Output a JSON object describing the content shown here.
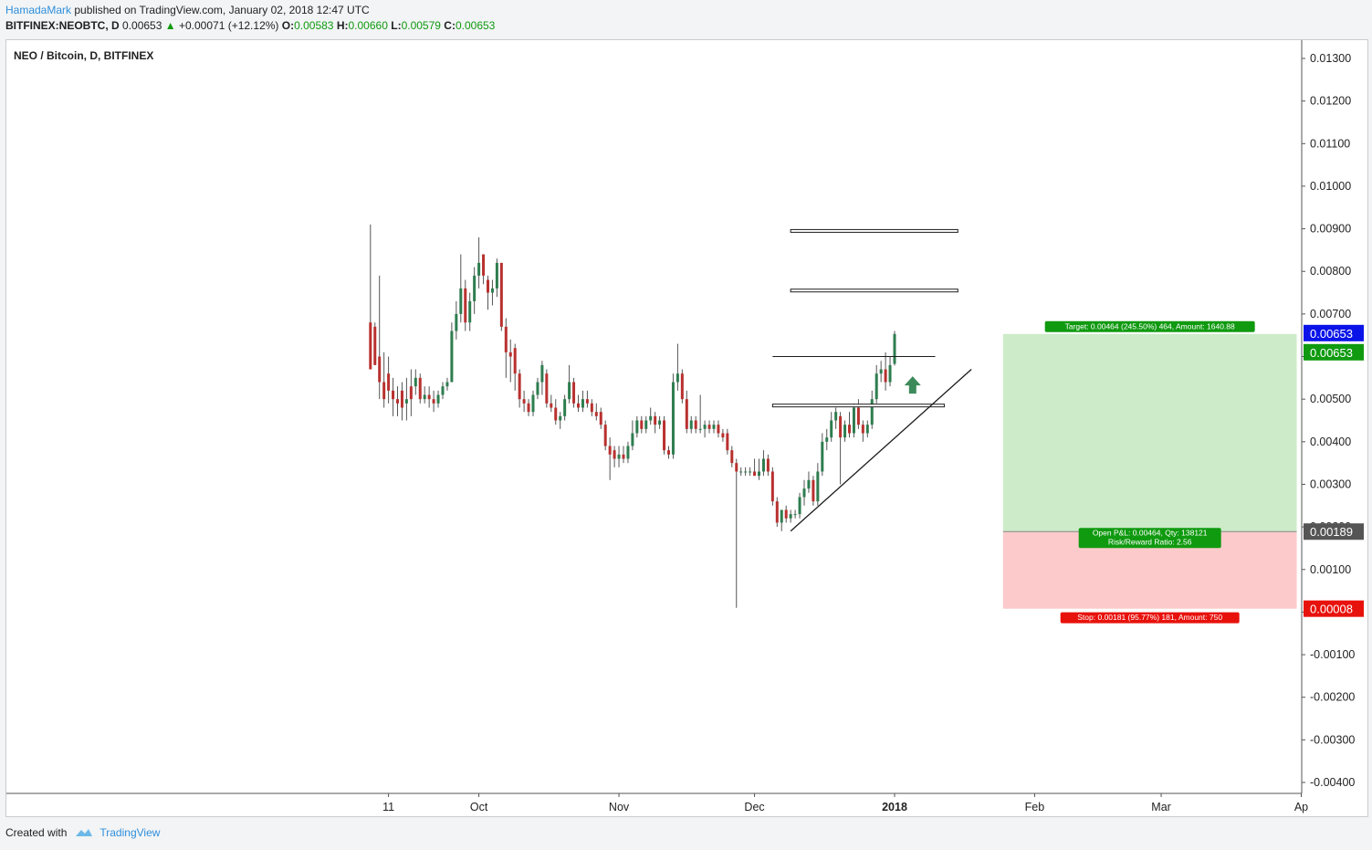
{
  "header": {
    "author": "HamadaMark",
    "published": "published on TradingView.com, January 02, 2018 12:47 UTC",
    "symbol": "BITFINEX:NEOBTC, D",
    "price": "0.00653",
    "change": "+0.00071 (+12.12%)",
    "o_label": "O:",
    "o": "0.00583",
    "h_label": "H:",
    "h": "0.00660",
    "l_label": "L:",
    "l": "0.00579",
    "c_label": "C:",
    "c": "0.00653"
  },
  "footer": {
    "created_with": "Created with",
    "brand": "TradingView"
  },
  "colors": {
    "up": "#2e7d4f",
    "down": "#b8312f",
    "wick": "#555555",
    "target_fill": "#cdebc9",
    "stop_fill": "#fccaca",
    "target_badge": "#109a10",
    "stop_badge": "#e8120c",
    "price_blue": "#0b14e8",
    "dark_badge": "#555555",
    "arrow": "#3c8a5a"
  },
  "chart_data": {
    "type": "candlestick",
    "title": "NEO / Bitcoin, D, BITFINEX",
    "ylim": [
      -0.0045,
      0.0135
    ],
    "y_ticks": [
      "0.01300",
      "0.01200",
      "0.01100",
      "0.01000",
      "0.00900",
      "0.00800",
      "0.00700",
      "0.00600",
      "0.00500",
      "0.00400",
      "0.00300",
      "0.00200",
      "0.00100",
      "0.00000",
      "-0.00100",
      "-0.00200",
      "-0.00300",
      "-0.00400"
    ],
    "x_tick_labels": [
      {
        "label": "11",
        "date": "2017-09-11"
      },
      {
        "label": "Oct",
        "date": "2017-10-01"
      },
      {
        "label": "Nov",
        "date": "2017-11-01"
      },
      {
        "label": "Dec",
        "date": "2017-12-01"
      },
      {
        "label": "2018",
        "date": "2018-01-01",
        "bold": true
      },
      {
        "label": "Feb",
        "date": "2018-02-01"
      },
      {
        "label": "Mar",
        "date": "2018-03-01"
      },
      {
        "label": "Ap",
        "date": "2018-04-01"
      }
    ],
    "candles": [
      {
        "date": "2017-09-07",
        "o": 0.0068,
        "h": 0.0091,
        "l": 0.0057,
        "c": 0.0057
      },
      {
        "date": "2017-09-08",
        "o": 0.0067,
        "h": 0.0068,
        "l": 0.0058,
        "c": 0.0058
      },
      {
        "date": "2017-09-09",
        "o": 0.006,
        "h": 0.0079,
        "l": 0.005,
        "c": 0.0054
      },
      {
        "date": "2017-09-10",
        "o": 0.0054,
        "h": 0.0061,
        "l": 0.0048,
        "c": 0.005
      },
      {
        "date": "2017-09-11",
        "o": 0.0056,
        "h": 0.006,
        "l": 0.0049,
        "c": 0.0052
      },
      {
        "date": "2017-09-12",
        "o": 0.0052,
        "h": 0.0055,
        "l": 0.0046,
        "c": 0.005
      },
      {
        "date": "2017-09-13",
        "o": 0.005,
        "h": 0.0053,
        "l": 0.0046,
        "c": 0.0049
      },
      {
        "date": "2017-09-14",
        "o": 0.0052,
        "h": 0.0054,
        "l": 0.0045,
        "c": 0.0048
      },
      {
        "date": "2017-09-15",
        "o": 0.0049,
        "h": 0.0055,
        "l": 0.0045,
        "c": 0.005
      },
      {
        "date": "2017-09-16",
        "o": 0.0053,
        "h": 0.0057,
        "l": 0.0046,
        "c": 0.005
      },
      {
        "date": "2017-09-17",
        "o": 0.0053,
        "h": 0.0057,
        "l": 0.0051,
        "c": 0.0055
      },
      {
        "date": "2017-09-18",
        "o": 0.0055,
        "h": 0.0056,
        "l": 0.0049,
        "c": 0.005
      },
      {
        "date": "2017-09-19",
        "o": 0.005,
        "h": 0.0053,
        "l": 0.0049,
        "c": 0.0051
      },
      {
        "date": "2017-09-20",
        "o": 0.0051,
        "h": 0.0053,
        "l": 0.0048,
        "c": 0.005
      },
      {
        "date": "2017-09-21",
        "o": 0.005,
        "h": 0.0052,
        "l": 0.0047,
        "c": 0.0049
      },
      {
        "date": "2017-09-22",
        "o": 0.0049,
        "h": 0.0052,
        "l": 0.0048,
        "c": 0.0051
      },
      {
        "date": "2017-09-23",
        "o": 0.0051,
        "h": 0.0054,
        "l": 0.005,
        "c": 0.0053
      },
      {
        "date": "2017-09-24",
        "o": 0.0053,
        "h": 0.0055,
        "l": 0.0052,
        "c": 0.0054
      },
      {
        "date": "2017-09-25",
        "o": 0.0054,
        "h": 0.0068,
        "l": 0.0054,
        "c": 0.0066
      },
      {
        "date": "2017-09-26",
        "o": 0.0066,
        "h": 0.0073,
        "l": 0.0064,
        "c": 0.007
      },
      {
        "date": "2017-09-27",
        "o": 0.007,
        "h": 0.0084,
        "l": 0.0068,
        "c": 0.0076
      },
      {
        "date": "2017-09-28",
        "o": 0.0076,
        "h": 0.0078,
        "l": 0.0066,
        "c": 0.0068
      },
      {
        "date": "2017-09-29",
        "o": 0.0068,
        "h": 0.0075,
        "l": 0.0066,
        "c": 0.0073
      },
      {
        "date": "2017-09-30",
        "o": 0.0073,
        "h": 0.0081,
        "l": 0.007,
        "c": 0.0079
      },
      {
        "date": "2017-10-01",
        "o": 0.0079,
        "h": 0.0088,
        "l": 0.0076,
        "c": 0.0082
      },
      {
        "date": "2017-10-02",
        "o": 0.0084,
        "h": 0.0084,
        "l": 0.0077,
        "c": 0.0079
      },
      {
        "date": "2017-10-03",
        "o": 0.0078,
        "h": 0.0079,
        "l": 0.0071,
        "c": 0.0075
      },
      {
        "date": "2017-10-04",
        "o": 0.0075,
        "h": 0.0078,
        "l": 0.0072,
        "c": 0.0076
      },
      {
        "date": "2017-10-05",
        "o": 0.0076,
        "h": 0.0083,
        "l": 0.0074,
        "c": 0.0082
      },
      {
        "date": "2017-10-06",
        "o": 0.0082,
        "h": 0.0082,
        "l": 0.0066,
        "c": 0.0067
      },
      {
        "date": "2017-10-07",
        "o": 0.0067,
        "h": 0.0069,
        "l": 0.0055,
        "c": 0.0061
      },
      {
        "date": "2017-10-08",
        "o": 0.0061,
        "h": 0.0064,
        "l": 0.0054,
        "c": 0.006
      },
      {
        "date": "2017-10-09",
        "o": 0.0062,
        "h": 0.0063,
        "l": 0.0052,
        "c": 0.0056
      },
      {
        "date": "2017-10-10",
        "o": 0.0056,
        "h": 0.0057,
        "l": 0.0048,
        "c": 0.005
      },
      {
        "date": "2017-10-11",
        "o": 0.005,
        "h": 0.0052,
        "l": 0.0047,
        "c": 0.0049
      },
      {
        "date": "2017-10-12",
        "o": 0.0049,
        "h": 0.005,
        "l": 0.0046,
        "c": 0.0047
      },
      {
        "date": "2017-10-13",
        "o": 0.0047,
        "h": 0.0052,
        "l": 0.0046,
        "c": 0.0051
      },
      {
        "date": "2017-10-14",
        "o": 0.0051,
        "h": 0.0055,
        "l": 0.005,
        "c": 0.0054
      },
      {
        "date": "2017-10-15",
        "o": 0.0054,
        "h": 0.0059,
        "l": 0.0051,
        "c": 0.0058
      },
      {
        "date": "2017-10-16",
        "o": 0.0056,
        "h": 0.0057,
        "l": 0.0048,
        "c": 0.0049
      },
      {
        "date": "2017-10-17",
        "o": 0.0049,
        "h": 0.0051,
        "l": 0.0047,
        "c": 0.0048
      },
      {
        "date": "2017-10-18",
        "o": 0.0048,
        "h": 0.005,
        "l": 0.0044,
        "c": 0.0045
      },
      {
        "date": "2017-10-19",
        "o": 0.0045,
        "h": 0.0047,
        "l": 0.0043,
        "c": 0.0046
      },
      {
        "date": "2017-10-20",
        "o": 0.0046,
        "h": 0.0051,
        "l": 0.0045,
        "c": 0.005
      },
      {
        "date": "2017-10-21",
        "o": 0.005,
        "h": 0.0058,
        "l": 0.0049,
        "c": 0.0054
      },
      {
        "date": "2017-10-22",
        "o": 0.0054,
        "h": 0.0055,
        "l": 0.0048,
        "c": 0.0049
      },
      {
        "date": "2017-10-23",
        "o": 0.0049,
        "h": 0.0051,
        "l": 0.0047,
        "c": 0.0048
      },
      {
        "date": "2017-10-24",
        "o": 0.0048,
        "h": 0.0052,
        "l": 0.0047,
        "c": 0.005
      },
      {
        "date": "2017-10-25",
        "o": 0.005,
        "h": 0.0052,
        "l": 0.0048,
        "c": 0.0049
      },
      {
        "date": "2017-10-26",
        "o": 0.0049,
        "h": 0.005,
        "l": 0.0046,
        "c": 0.0047
      },
      {
        "date": "2017-10-27",
        "o": 0.0047,
        "h": 0.0049,
        "l": 0.0045,
        "c": 0.0046
      },
      {
        "date": "2017-10-28",
        "o": 0.0047,
        "h": 0.0048,
        "l": 0.0043,
        "c": 0.0044
      },
      {
        "date": "2017-10-29",
        "o": 0.0044,
        "h": 0.0045,
        "l": 0.0038,
        "c": 0.0039
      },
      {
        "date": "2017-10-30",
        "o": 0.0039,
        "h": 0.0041,
        "l": 0.0031,
        "c": 0.0037
      },
      {
        "date": "2017-10-31",
        "o": 0.0038,
        "h": 0.0039,
        "l": 0.0034,
        "c": 0.0036
      },
      {
        "date": "2017-11-01",
        "o": 0.0036,
        "h": 0.0039,
        "l": 0.0034,
        "c": 0.0037
      },
      {
        "date": "2017-11-02",
        "o": 0.0037,
        "h": 0.0039,
        "l": 0.0035,
        "c": 0.0036
      },
      {
        "date": "2017-11-03",
        "o": 0.0036,
        "h": 0.004,
        "l": 0.0035,
        "c": 0.0039
      },
      {
        "date": "2017-11-04",
        "o": 0.0039,
        "h": 0.0045,
        "l": 0.0038,
        "c": 0.0042
      },
      {
        "date": "2017-11-05",
        "o": 0.0042,
        "h": 0.0046,
        "l": 0.0041,
        "c": 0.0045
      },
      {
        "date": "2017-11-06",
        "o": 0.0045,
        "h": 0.0046,
        "l": 0.0042,
        "c": 0.0043
      },
      {
        "date": "2017-11-07",
        "o": 0.0043,
        "h": 0.0046,
        "l": 0.0042,
        "c": 0.0045
      },
      {
        "date": "2017-11-08",
        "o": 0.0045,
        "h": 0.0048,
        "l": 0.0044,
        "c": 0.0046
      },
      {
        "date": "2017-11-09",
        "o": 0.0046,
        "h": 0.0047,
        "l": 0.0042,
        "c": 0.0044
      },
      {
        "date": "2017-11-10",
        "o": 0.0044,
        "h": 0.0046,
        "l": 0.0043,
        "c": 0.0045
      },
      {
        "date": "2017-11-11",
        "o": 0.0045,
        "h": 0.0046,
        "l": 0.0037,
        "c": 0.0038
      },
      {
        "date": "2017-11-12",
        "o": 0.0038,
        "h": 0.0039,
        "l": 0.0036,
        "c": 0.0037
      },
      {
        "date": "2017-11-13",
        "o": 0.0037,
        "h": 0.0056,
        "l": 0.0036,
        "c": 0.0054
      },
      {
        "date": "2017-11-14",
        "o": 0.0054,
        "h": 0.0063,
        "l": 0.0052,
        "c": 0.0056
      },
      {
        "date": "2017-11-15",
        "o": 0.0056,
        "h": 0.0057,
        "l": 0.0049,
        "c": 0.005
      },
      {
        "date": "2017-11-16",
        "o": 0.005,
        "h": 0.0052,
        "l": 0.0042,
        "c": 0.0043
      },
      {
        "date": "2017-11-17",
        "o": 0.0043,
        "h": 0.0046,
        "l": 0.0042,
        "c": 0.0045
      },
      {
        "date": "2017-11-18",
        "o": 0.0045,
        "h": 0.0046,
        "l": 0.0042,
        "c": 0.0043
      },
      {
        "date": "2017-11-19",
        "o": 0.0043,
        "h": 0.0051,
        "l": 0.0042,
        "c": 0.0043
      },
      {
        "date": "2017-11-20",
        "o": 0.0043,
        "h": 0.0045,
        "l": 0.0041,
        "c": 0.0044
      },
      {
        "date": "2017-11-21",
        "o": 0.0044,
        "h": 0.0045,
        "l": 0.0042,
        "c": 0.0043
      },
      {
        "date": "2017-11-22",
        "o": 0.0043,
        "h": 0.0045,
        "l": 0.0042,
        "c": 0.0044
      },
      {
        "date": "2017-11-23",
        "o": 0.0044,
        "h": 0.0045,
        "l": 0.0041,
        "c": 0.0042
      },
      {
        "date": "2017-11-24",
        "o": 0.0042,
        "h": 0.0043,
        "l": 0.004,
        "c": 0.0041
      },
      {
        "date": "2017-11-25",
        "o": 0.0042,
        "h": 0.0043,
        "l": 0.0037,
        "c": 0.0038
      },
      {
        "date": "2017-11-26",
        "o": 0.0038,
        "h": 0.0039,
        "l": 0.0034,
        "c": 0.0035
      },
      {
        "date": "2017-11-27",
        "o": 0.0035,
        "h": 0.0036,
        "l": 0.0001,
        "c": 0.0033
      },
      {
        "date": "2017-11-28",
        "o": 0.0033,
        "h": 0.0034,
        "l": 0.0032,
        "c": 0.0033
      },
      {
        "date": "2017-11-29",
        "o": 0.0033,
        "h": 0.0034,
        "l": 0.0032,
        "c": 0.0033
      },
      {
        "date": "2017-11-30",
        "o": 0.0033,
        "h": 0.0034,
        "l": 0.0032,
        "c": 0.0033
      },
      {
        "date": "2017-12-01",
        "o": 0.0033,
        "h": 0.0036,
        "l": 0.0032,
        "c": 0.0032
      },
      {
        "date": "2017-12-02",
        "o": 0.0032,
        "h": 0.0036,
        "l": 0.0031,
        "c": 0.0033
      },
      {
        "date": "2017-12-03",
        "o": 0.0033,
        "h": 0.0038,
        "l": 0.0032,
        "c": 0.0036
      },
      {
        "date": "2017-12-04",
        "o": 0.0036,
        "h": 0.0037,
        "l": 0.0032,
        "c": 0.0033
      },
      {
        "date": "2017-12-05",
        "o": 0.0033,
        "h": 0.0034,
        "l": 0.0025,
        "c": 0.0026
      },
      {
        "date": "2017-12-06",
        "o": 0.0026,
        "h": 0.0027,
        "l": 0.002,
        "c": 0.0021
      },
      {
        "date": "2017-12-07",
        "o": 0.0021,
        "h": 0.0024,
        "l": 0.0019,
        "c": 0.0024
      },
      {
        "date": "2017-12-08",
        "o": 0.0024,
        "h": 0.0025,
        "l": 0.0021,
        "c": 0.0022
      },
      {
        "date": "2017-12-09",
        "o": 0.0022,
        "h": 0.0024,
        "l": 0.0021,
        "c": 0.0023
      },
      {
        "date": "2017-12-10",
        "o": 0.0023,
        "h": 0.0024,
        "l": 0.0022,
        "c": 0.0023
      },
      {
        "date": "2017-12-11",
        "o": 0.0023,
        "h": 0.0028,
        "l": 0.0022,
        "c": 0.0027
      },
      {
        "date": "2017-12-12",
        "o": 0.0027,
        "h": 0.0031,
        "l": 0.0025,
        "c": 0.0029
      },
      {
        "date": "2017-12-13",
        "o": 0.0029,
        "h": 0.0033,
        "l": 0.0028,
        "c": 0.0031
      },
      {
        "date": "2017-12-14",
        "o": 0.0031,
        "h": 0.0032,
        "l": 0.0025,
        "c": 0.0026
      },
      {
        "date": "2017-12-15",
        "o": 0.0026,
        "h": 0.0035,
        "l": 0.0025,
        "c": 0.0033
      },
      {
        "date": "2017-12-16",
        "o": 0.0033,
        "h": 0.0042,
        "l": 0.0032,
        "c": 0.004
      },
      {
        "date": "2017-12-17",
        "o": 0.004,
        "h": 0.0043,
        "l": 0.0038,
        "c": 0.0041
      },
      {
        "date": "2017-12-18",
        "o": 0.0041,
        "h": 0.0047,
        "l": 0.004,
        "c": 0.0045
      },
      {
        "date": "2017-12-19",
        "o": 0.0045,
        "h": 0.0048,
        "l": 0.0043,
        "c": 0.0047
      },
      {
        "date": "2017-12-20",
        "o": 0.0046,
        "h": 0.0047,
        "l": 0.003,
        "c": 0.0041
      },
      {
        "date": "2017-12-21",
        "o": 0.0041,
        "h": 0.0045,
        "l": 0.004,
        "c": 0.0044
      },
      {
        "date": "2017-12-22",
        "o": 0.0044,
        "h": 0.0047,
        "l": 0.0041,
        "c": 0.0042
      },
      {
        "date": "2017-12-23",
        "o": 0.0042,
        "h": 0.0049,
        "l": 0.0041,
        "c": 0.0048
      },
      {
        "date": "2017-12-24",
        "o": 0.0048,
        "h": 0.005,
        "l": 0.0043,
        "c": 0.0044
      },
      {
        "date": "2017-12-25",
        "o": 0.0044,
        "h": 0.0045,
        "l": 0.004,
        "c": 0.0042
      },
      {
        "date": "2017-12-26",
        "o": 0.0042,
        "h": 0.0045,
        "l": 0.0041,
        "c": 0.0044
      },
      {
        "date": "2017-12-27",
        "o": 0.0044,
        "h": 0.0052,
        "l": 0.0043,
        "c": 0.005
      },
      {
        "date": "2017-12-28",
        "o": 0.005,
        "h": 0.0058,
        "l": 0.0049,
        "c": 0.0056
      },
      {
        "date": "2017-12-29",
        "o": 0.0056,
        "h": 0.0059,
        "l": 0.0054,
        "c": 0.0057
      },
      {
        "date": "2017-12-30",
        "o": 0.0057,
        "h": 0.0061,
        "l": 0.0052,
        "c": 0.0054
      },
      {
        "date": "2017-12-31",
        "o": 0.0054,
        "h": 0.006,
        "l": 0.0053,
        "c": 0.0058
      },
      {
        "date": "2018-01-01",
        "o": 0.00583,
        "h": 0.0066,
        "l": 0.00579,
        "c": 0.00653
      }
    ],
    "drawings": {
      "horizontal_lines": [
        {
          "from": "2017-12-09",
          "to": "2018-01-15",
          "y": 0.00895,
          "style": "double"
        },
        {
          "from": "2017-12-09",
          "to": "2018-01-15",
          "y": 0.00755,
          "style": "double"
        },
        {
          "from": "2017-12-05",
          "to": "2018-01-10",
          "y": 0.006,
          "style": "single"
        },
        {
          "from": "2017-12-05",
          "to": "2018-01-12",
          "y": 0.00485,
          "style": "double"
        }
      ],
      "trendline": {
        "from": {
          "date": "2017-12-09",
          "y": 0.0019
        },
        "to": {
          "date": "2018-01-18",
          "y": 0.0057
        }
      },
      "arrow_up": {
        "date": "2018-01-05",
        "y": 0.0053
      }
    },
    "position": {
      "type": "long",
      "from": "2018-01-25",
      "to": "2018-03-31",
      "entry": 0.00189,
      "target": 0.00653,
      "stop": 8e-05,
      "target_label": "Target: 0.00464 (245.50%) 464, Amount: 1640.88",
      "pl_label_1": "Open P&L: 0.00464, Qty: 138121",
      "pl_label_2": "Risk/Reward Ratio: 2.56",
      "stop_label": "Stop: 0.00181 (95.77%) 181, Amount: 750"
    },
    "price_badges": [
      {
        "value": "0.00653",
        "style": "blue"
      },
      {
        "value": "0.00653",
        "style": "green"
      },
      {
        "value": "0.00189",
        "style": "dark"
      },
      {
        "value": "0.00008",
        "style": "red"
      }
    ]
  }
}
